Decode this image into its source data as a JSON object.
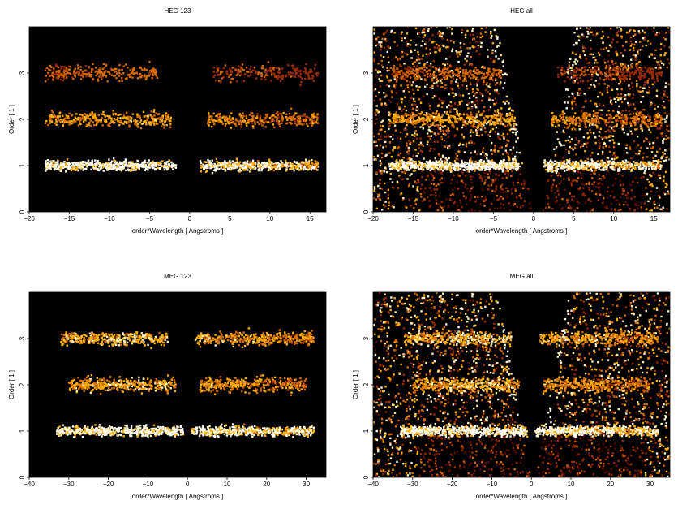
{
  "figure": {
    "background": "#ffffff",
    "panel_background": "#000000"
  },
  "colormap": [
    "#5a0c00",
    "#9a2a00",
    "#d66a00",
    "#ffb000",
    "#fff2c0",
    "#ffffff"
  ],
  "chart_data": [
    {
      "type": "heatmap",
      "title": "HEG 123",
      "xlabel": "order*Wavelength [ Angstroms ]",
      "ylabel": "Order [ 1 ]",
      "xlim": [
        -20,
        17
      ],
      "ylim": [
        0,
        4
      ],
      "xticks": [
        -20,
        -15,
        -10,
        -5,
        0,
        5,
        10,
        15
      ],
      "yticks": [
        0,
        1,
        2,
        3
      ],
      "bands": [
        {
          "order": 1,
          "x_range": [
            -18,
            16
          ],
          "gap": [
            -1.7,
            1.3
          ],
          "intensity": 0.95
        },
        {
          "order": 2,
          "x_range": [
            -18,
            16
          ],
          "gap": [
            -2.3,
            2.2
          ],
          "intensity": 0.45
        },
        {
          "order": 3,
          "x_range": [
            -18,
            16
          ],
          "gap": [
            -4,
            3
          ],
          "intensity": 0.25
        }
      ],
      "include_wedge": false
    },
    {
      "type": "heatmap",
      "title": "HEG all",
      "xlabel": "order*Wavelength [ Angstroms ]",
      "ylabel": "Order [ 1 ]",
      "xlim": [
        -20,
        17
      ],
      "ylim": [
        0,
        4
      ],
      "xticks": [
        -20,
        -15,
        -10,
        -5,
        0,
        5,
        10,
        15
      ],
      "yticks": [
        0,
        1,
        2,
        3
      ],
      "bands": [
        {
          "order": 1,
          "x_range": [
            -18,
            16
          ],
          "gap": [
            -1.7,
            1.3
          ],
          "intensity": 0.95
        },
        {
          "order": 2,
          "x_range": [
            -18,
            16
          ],
          "gap": [
            -2.3,
            2.2
          ],
          "intensity": 0.45
        },
        {
          "order": 3,
          "x_range": [
            -18,
            16
          ],
          "gap": [
            -4,
            3
          ],
          "intensity": 0.25
        }
      ],
      "include_wedge": true
    },
    {
      "type": "heatmap",
      "title": "MEG 123",
      "xlabel": "order*Wavelength [ Angstroms ]",
      "ylabel": "Order [ 1 ]",
      "xlim": [
        -40,
        35
      ],
      "ylim": [
        0,
        4
      ],
      "xticks": [
        -40,
        -30,
        -20,
        -10,
        0,
        10,
        20,
        30
      ],
      "yticks": [
        0,
        1,
        2,
        3
      ],
      "bands": [
        {
          "order": 1,
          "x_range": [
            -33,
            32
          ],
          "gap": [
            -1,
            1
          ],
          "intensity": 0.95
        },
        {
          "order": 2,
          "x_range": [
            -30,
            30
          ],
          "gap": [
            -3,
            3
          ],
          "intensity": 0.5
        },
        {
          "order": 3,
          "x_range": [
            -32,
            32
          ],
          "gap": [
            -5,
            2
          ],
          "intensity": 0.55
        }
      ],
      "include_wedge": false
    },
    {
      "type": "heatmap",
      "title": "MEG all",
      "xlabel": "order*Wavelength [ Angstroms ]",
      "ylabel": "Order [ 1 ]",
      "xlim": [
        -40,
        35
      ],
      "ylim": [
        0,
        4
      ],
      "xticks": [
        -40,
        -30,
        -20,
        -10,
        0,
        10,
        20,
        30
      ],
      "yticks": [
        0,
        1,
        2,
        3
      ],
      "bands": [
        {
          "order": 1,
          "x_range": [
            -33,
            32
          ],
          "gap": [
            -1,
            1
          ],
          "intensity": 0.95
        },
        {
          "order": 2,
          "x_range": [
            -30,
            30
          ],
          "gap": [
            -3,
            3
          ],
          "intensity": 0.5
        },
        {
          "order": 3,
          "x_range": [
            -32,
            32
          ],
          "gap": [
            -5,
            2
          ],
          "intensity": 0.55
        }
      ],
      "include_wedge": true
    }
  ]
}
